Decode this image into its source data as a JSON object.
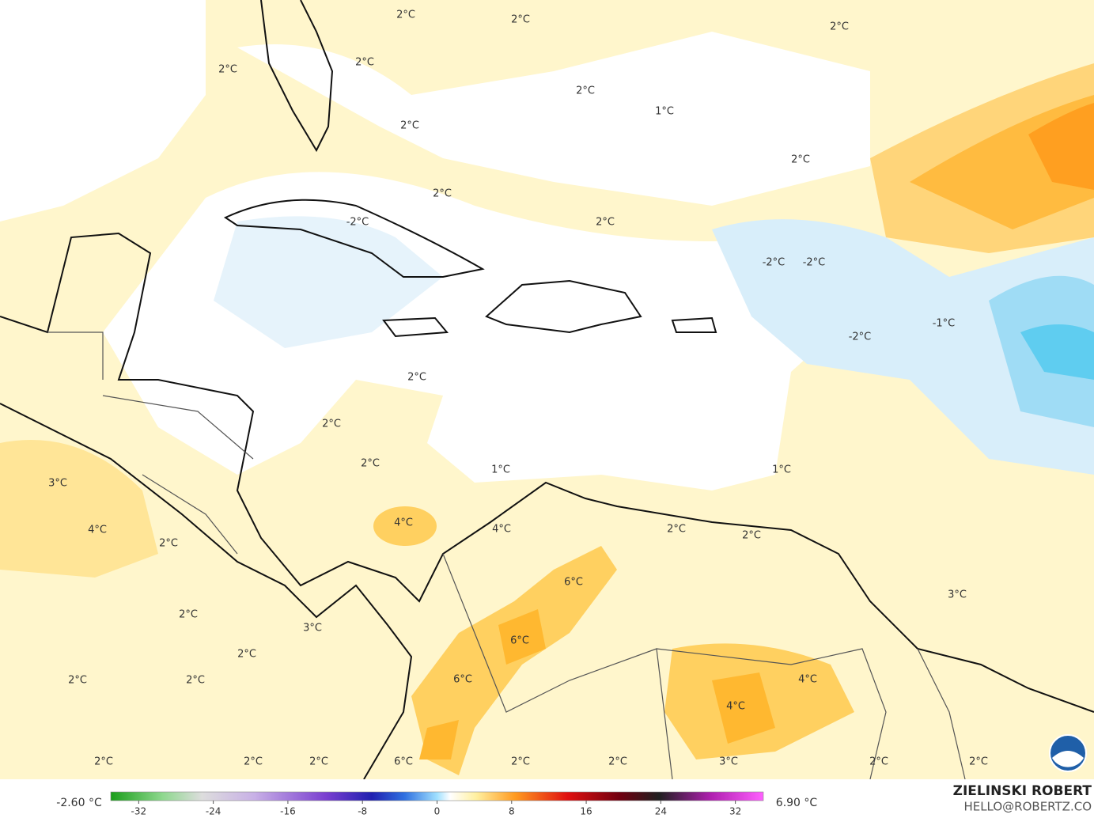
{
  "map": {
    "labels": [
      "2°C",
      "2°C",
      "2°C",
      "2°C",
      "2°C",
      "2°C",
      "1°C",
      "2°C",
      "2°C",
      "2°C",
      "-2°C",
      "2°C",
      "-2°C",
      "-2°C",
      "-1°C",
      "-2°C",
      "2°C",
      "2°C",
      "3°C",
      "2°C",
      "1°C",
      "1°C",
      "4°C",
      "4°C",
      "4°C",
      "2°C",
      "2°C",
      "2°C",
      "6°C",
      "3°C",
      "2°C",
      "3°C",
      "6°C",
      "2°C",
      "2°C",
      "2°C",
      "6°C",
      "4°C",
      "4°C",
      "2°C",
      "2°C",
      "2°C",
      "6°C",
      "2°C",
      "2°C",
      "3°C",
      "2°C",
      "2°C"
    ]
  },
  "colorbar": {
    "min_label": "-2.60 °C",
    "max_label": "6.90 °C",
    "range": [
      -35,
      35
    ],
    "ticks": [
      -32,
      -24,
      -16,
      -8,
      0,
      8,
      16,
      24,
      32
    ]
  },
  "credit": {
    "name": "ZIELINSKI ROBERT",
    "email": "HELLO@ROBERTZ.CO"
  }
}
